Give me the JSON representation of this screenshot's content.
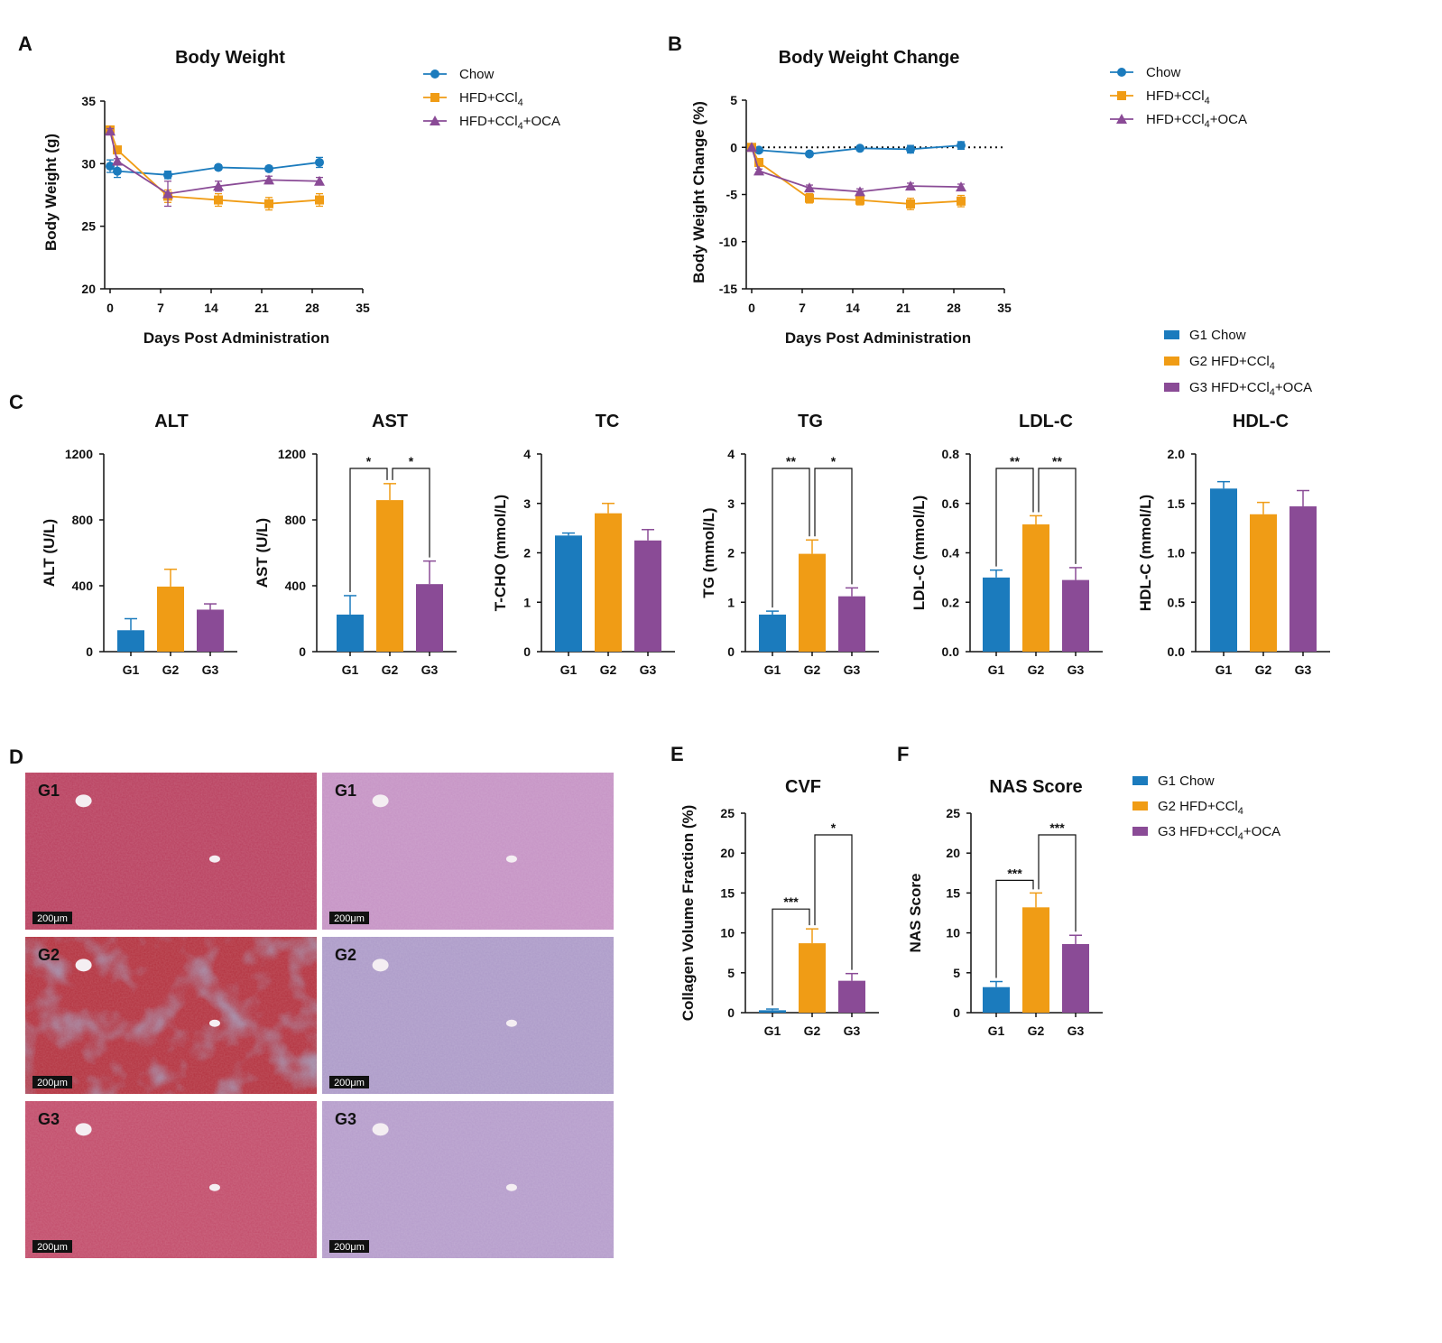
{
  "panels": {
    "A": "A",
    "B": "B",
    "C": "C",
    "D": "D",
    "E": "E",
    "F": "F"
  },
  "colors": {
    "chow": "#1b7bbd",
    "hfd": "#f09c15",
    "oca": "#8a4b96"
  },
  "line_legend": [
    "Chow",
    "HFD+CCl4",
    "HFD+CCl4+OCA"
  ],
  "bar_legend": [
    "G1 Chow",
    "G2 HFD+CCl4",
    "G3 HFD+CCl4+OCA"
  ],
  "histology": {
    "labels": [
      "G1",
      "G1",
      "G2",
      "G2",
      "G3",
      "G3"
    ],
    "scale_bar": "200μm"
  },
  "chart_data": [
    {
      "id": "bw",
      "type": "line",
      "title": "Body Weight",
      "xlabel": "Days Post Administration",
      "ylabel": "Body Weight (g)",
      "xlim": [
        0,
        35
      ],
      "ylim": [
        20,
        35
      ],
      "xticks": [
        0,
        7,
        14,
        21,
        28,
        35
      ],
      "yticks": [
        20,
        25,
        30,
        35
      ],
      "series": [
        {
          "name": "Chow",
          "marker": "circle",
          "points": [
            [
              0,
              29.8
            ],
            [
              1,
              29.4
            ],
            [
              8,
              29.1
            ],
            [
              15,
              29.7
            ],
            [
              22,
              29.6
            ],
            [
              29,
              30.1
            ]
          ],
          "errors": [
            0.5,
            0.5,
            0.3,
            0.2,
            0.2,
            0.4
          ]
        },
        {
          "name": "HFD+CCl4",
          "marker": "square",
          "points": [
            [
              0,
              32.7
            ],
            [
              1,
              31.1
            ],
            [
              8,
              27.4
            ],
            [
              15,
              27.1
            ],
            [
              22,
              26.8
            ],
            [
              29,
              27.1
            ]
          ],
          "errors": [
            0.2,
            0.2,
            0.5,
            0.5,
            0.5,
            0.5
          ]
        },
        {
          "name": "HFD+CCl4+OCA",
          "marker": "triangle",
          "points": [
            [
              0,
              32.6
            ],
            [
              1,
              30.2
            ],
            [
              8,
              27.6
            ],
            [
              15,
              28.2
            ],
            [
              22,
              28.7
            ],
            [
              29,
              28.6
            ]
          ],
          "errors": [
            0.2,
            0.2,
            1.0,
            0.4,
            0.3,
            0.3
          ]
        }
      ]
    },
    {
      "id": "bwc",
      "type": "line",
      "title": "Body Weight Change",
      "xlabel": "Days Post Administration",
      "ylabel": "Body Weight Change (%)",
      "xlim": [
        0,
        35
      ],
      "ylim": [
        -15,
        5
      ],
      "xticks": [
        0,
        7,
        14,
        21,
        28,
        35
      ],
      "yticks": [
        -15,
        -10,
        -5,
        0,
        5
      ],
      "reference_line": 0,
      "series": [
        {
          "name": "Chow",
          "marker": "circle",
          "points": [
            [
              0,
              0
            ],
            [
              1,
              -0.3
            ],
            [
              8,
              -0.7
            ],
            [
              15,
              -0.1
            ],
            [
              22,
              -0.2
            ],
            [
              29,
              0.2
            ]
          ],
          "errors": [
            0,
            0.2,
            0.2,
            0.2,
            0.4,
            0.4
          ]
        },
        {
          "name": "HFD+CCl4",
          "marker": "square",
          "points": [
            [
              0,
              0
            ],
            [
              1,
              -1.6
            ],
            [
              8,
              -5.4
            ],
            [
              15,
              -5.6
            ],
            [
              22,
              -6.0
            ],
            [
              29,
              -5.7
            ]
          ],
          "errors": [
            0,
            0.3,
            0.5,
            0.5,
            0.6,
            0.6
          ]
        },
        {
          "name": "HFD+CCl4+OCA",
          "marker": "triangle",
          "points": [
            [
              0,
              0
            ],
            [
              1,
              -2.5
            ],
            [
              8,
              -4.3
            ],
            [
              15,
              -4.7
            ],
            [
              22,
              -4.1
            ],
            [
              29,
              -4.2
            ]
          ],
          "errors": [
            0,
            0.2,
            0.3,
            0.3,
            0.3,
            0.3
          ]
        }
      ]
    },
    {
      "id": "alt",
      "type": "bar",
      "title": "ALT",
      "ylabel": "ALT (U/L)",
      "categories": [
        "G1",
        "G2",
        "G3"
      ],
      "values": [
        130,
        395,
        255
      ],
      "errors": [
        70,
        105,
        35
      ],
      "ylim": [
        0,
        1200
      ],
      "yticks": [
        0,
        400,
        800,
        1200
      ],
      "sig": []
    },
    {
      "id": "ast",
      "type": "bar",
      "title": "AST",
      "ylabel": "AST (U/L)",
      "categories": [
        "G1",
        "G2",
        "G3"
      ],
      "values": [
        225,
        920,
        410
      ],
      "errors": [
        115,
        100,
        140
      ],
      "ylim": [
        0,
        1200
      ],
      "yticks": [
        0,
        400,
        800,
        1200
      ],
      "sig": [
        {
          "from": 0,
          "to": 1,
          "label": "*"
        },
        {
          "from": 1,
          "to": 2,
          "label": "*"
        }
      ]
    },
    {
      "id": "tc",
      "type": "bar",
      "title": "TC",
      "ylabel": "T-CHO (mmol/L)",
      "categories": [
        "G1",
        "G2",
        "G3"
      ],
      "values": [
        2.35,
        2.8,
        2.25
      ],
      "errors": [
        0.05,
        0.2,
        0.22
      ],
      "ylim": [
        0,
        4
      ],
      "yticks": [
        0,
        1,
        2,
        3,
        4
      ],
      "sig": []
    },
    {
      "id": "tg",
      "type": "bar",
      "title": "TG",
      "ylabel": "TG (mmol/L)",
      "categories": [
        "G1",
        "G2",
        "G3"
      ],
      "values": [
        0.75,
        1.98,
        1.12
      ],
      "errors": [
        0.07,
        0.28,
        0.17
      ],
      "ylim": [
        0,
        4
      ],
      "yticks": [
        0,
        1,
        2,
        3,
        4
      ],
      "sig": [
        {
          "from": 0,
          "to": 1,
          "label": "**"
        },
        {
          "from": 1,
          "to": 2,
          "label": "*"
        }
      ]
    },
    {
      "id": "ldl",
      "type": "bar",
      "title": "LDL-C",
      "ylabel": "LDL-C (mmol/L)",
      "categories": [
        "G1",
        "G2",
        "G3"
      ],
      "values": [
        0.3,
        0.515,
        0.29
      ],
      "errors": [
        0.03,
        0.035,
        0.05
      ],
      "ylim": [
        0,
        0.8
      ],
      "yticks": [
        0.0,
        0.2,
        0.4,
        0.6,
        0.8
      ],
      "ytick_labels": [
        "0.0",
        "0.2",
        "0.4",
        "0.6",
        "0.8"
      ],
      "sig": [
        {
          "from": 0,
          "to": 1,
          "label": "**"
        },
        {
          "from": 1,
          "to": 2,
          "label": "**"
        }
      ]
    },
    {
      "id": "hdl",
      "type": "bar",
      "title": "HDL-C",
      "ylabel": "HDL-C (mmol/L)",
      "categories": [
        "G1",
        "G2",
        "G3"
      ],
      "values": [
        1.65,
        1.39,
        1.47
      ],
      "errors": [
        0.07,
        0.12,
        0.16
      ],
      "ylim": [
        0,
        2.0
      ],
      "yticks": [
        0.0,
        0.5,
        1.0,
        1.5,
        2.0
      ],
      "ytick_labels": [
        "0.0",
        "0.5",
        "1.0",
        "1.5",
        "2.0"
      ],
      "sig": []
    },
    {
      "id": "cvf",
      "type": "bar",
      "title": "CVF",
      "ylabel": "Collagen Volume Fraction (%)",
      "categories": [
        "G1",
        "G2",
        "G3"
      ],
      "values": [
        0.3,
        8.7,
        4.0
      ],
      "errors": [
        0.15,
        1.8,
        0.9
      ],
      "ylim": [
        0,
        25
      ],
      "yticks": [
        0,
        5,
        10,
        15,
        20,
        25
      ],
      "sig": [
        {
          "from": 0,
          "to": 1,
          "label": "***"
        },
        {
          "from": 1,
          "to": 2,
          "label": "*"
        }
      ]
    },
    {
      "id": "nas",
      "type": "bar",
      "title": "NAS Score",
      "ylabel": "NAS Score",
      "categories": [
        "G1",
        "G2",
        "G3"
      ],
      "values": [
        3.2,
        13.2,
        8.6
      ],
      "errors": [
        0.7,
        1.8,
        1.1
      ],
      "ylim": [
        0,
        25
      ],
      "yticks": [
        0,
        5,
        10,
        15,
        20,
        25
      ],
      "sig": [
        {
          "from": 0,
          "to": 1,
          "label": "***"
        },
        {
          "from": 1,
          "to": 2,
          "label": "***"
        }
      ]
    }
  ]
}
